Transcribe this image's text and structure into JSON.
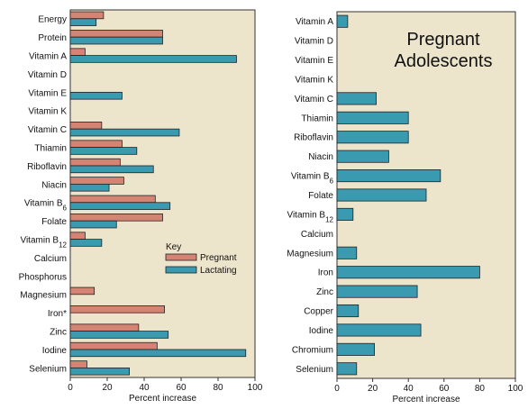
{
  "colors": {
    "panel_bg": "#ede4cc",
    "pregnant": "#d58474",
    "lactating": "#3a9ab0",
    "edge": "#222222"
  },
  "chart_data": [
    {
      "type": "bar",
      "orientation": "horizontal",
      "categories": [
        "Energy",
        "Protein",
        "Vitamin A",
        "Vitamin D",
        "Vitamin E",
        "Vitamin K",
        "Vitamin C",
        "Thiamin",
        "Riboflavin",
        "Niacin",
        "Vitamin B6",
        "Folate",
        "Vitamin B12",
        "Calcium",
        "Phosphorus",
        "Magnesium",
        "Iron*",
        "Zinc",
        "Iodine",
        "Selenium"
      ],
      "series": [
        {
          "name": "Pregnant",
          "values": [
            18,
            50,
            8,
            0,
            0,
            0,
            17,
            28,
            27,
            29,
            46,
            50,
            8,
            0,
            0,
            13,
            51,
            37,
            47,
            9
          ]
        },
        {
          "name": "Lactating",
          "values": [
            14,
            50,
            90,
            0,
            28,
            0,
            59,
            36,
            45,
            21,
            54,
            25,
            17,
            0,
            0,
            0,
            0,
            53,
            95,
            32
          ]
        }
      ],
      "xlabel": "Percent increase",
      "xlim": [
        0,
        100
      ],
      "xticks": [
        "0",
        "20",
        "40",
        "60",
        "80",
        "100"
      ],
      "key": {
        "title": "Key",
        "entries": [
          "Pregnant",
          "Lactating"
        ]
      },
      "legend_position": "lower-right"
    },
    {
      "type": "bar",
      "orientation": "horizontal",
      "title": [
        "Pregnant",
        "Adolescents"
      ],
      "categories": [
        "Vitamin A",
        "Vitamin D",
        "Vitamin E",
        "Vitamin K",
        "Vitamin C",
        "Thiamin",
        "Riboflavin",
        "Niacin",
        "Vitamin B6",
        "Folate",
        "Vitamin B12",
        "Calcium",
        "Magnesium",
        "Iron",
        "Zinc",
        "Copper",
        "Iodine",
        "Chromium",
        "Selenium"
      ],
      "series": [
        {
          "values": [
            6,
            0,
            0,
            0,
            22,
            40,
            40,
            29,
            58,
            50,
            9,
            0,
            11,
            80,
            45,
            12,
            47,
            21,
            11
          ]
        }
      ],
      "xlabel": "Percent increase",
      "xlim": [
        0,
        100
      ],
      "xticks": [
        "0",
        "20",
        "40",
        "60",
        "80",
        "100"
      ]
    }
  ]
}
